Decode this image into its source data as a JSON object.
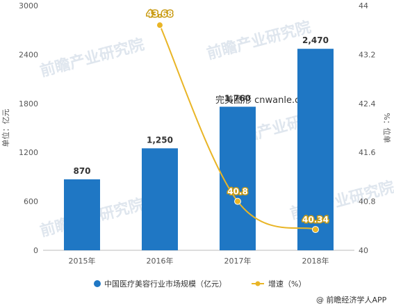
{
  "chart_data": {
    "type": "bar",
    "categories": [
      "2015年",
      "2016年",
      "2017年",
      "2018年"
    ],
    "series": [
      {
        "name": "中国医疗美容行业市场规模（亿元）",
        "type": "bar",
        "axis": "left",
        "values": [
          870,
          1250,
          1760,
          2470
        ],
        "labels": [
          "870",
          "1,250",
          "1,760",
          "2,470"
        ],
        "color": "#1f77c4"
      },
      {
        "name": "增速（%）",
        "type": "line",
        "axis": "right",
        "x": [
          "2016年",
          "2017年",
          "2018年"
        ],
        "values": [
          43.68,
          40.8,
          40.34
        ],
        "labels": [
          "43.68",
          "40.8",
          "40.34"
        ],
        "color": "#e9b526"
      }
    ],
    "ylabel_left": "单位：亿元",
    "ylabel_right": "%：位单",
    "ylim_left": [
      0,
      3000
    ],
    "yticks_left": [
      "0",
      "600",
      "1200",
      "1800",
      "2400",
      "3000"
    ],
    "ylim_right": [
      40,
      44
    ],
    "yticks_right": [
      "40",
      "40.8",
      "41.6",
      "42.4",
      "43.2",
      "44"
    ],
    "grid": false,
    "legend": "bottom"
  },
  "watermark": {
    "text": "前瞻产业研究院",
    "secondary": "完美图形 cnwanle.com"
  },
  "credit": "@ 前瞻经济学人APP",
  "colors": {
    "watermark": "#dfe6ee",
    "axis": "#bbbbbb"
  }
}
